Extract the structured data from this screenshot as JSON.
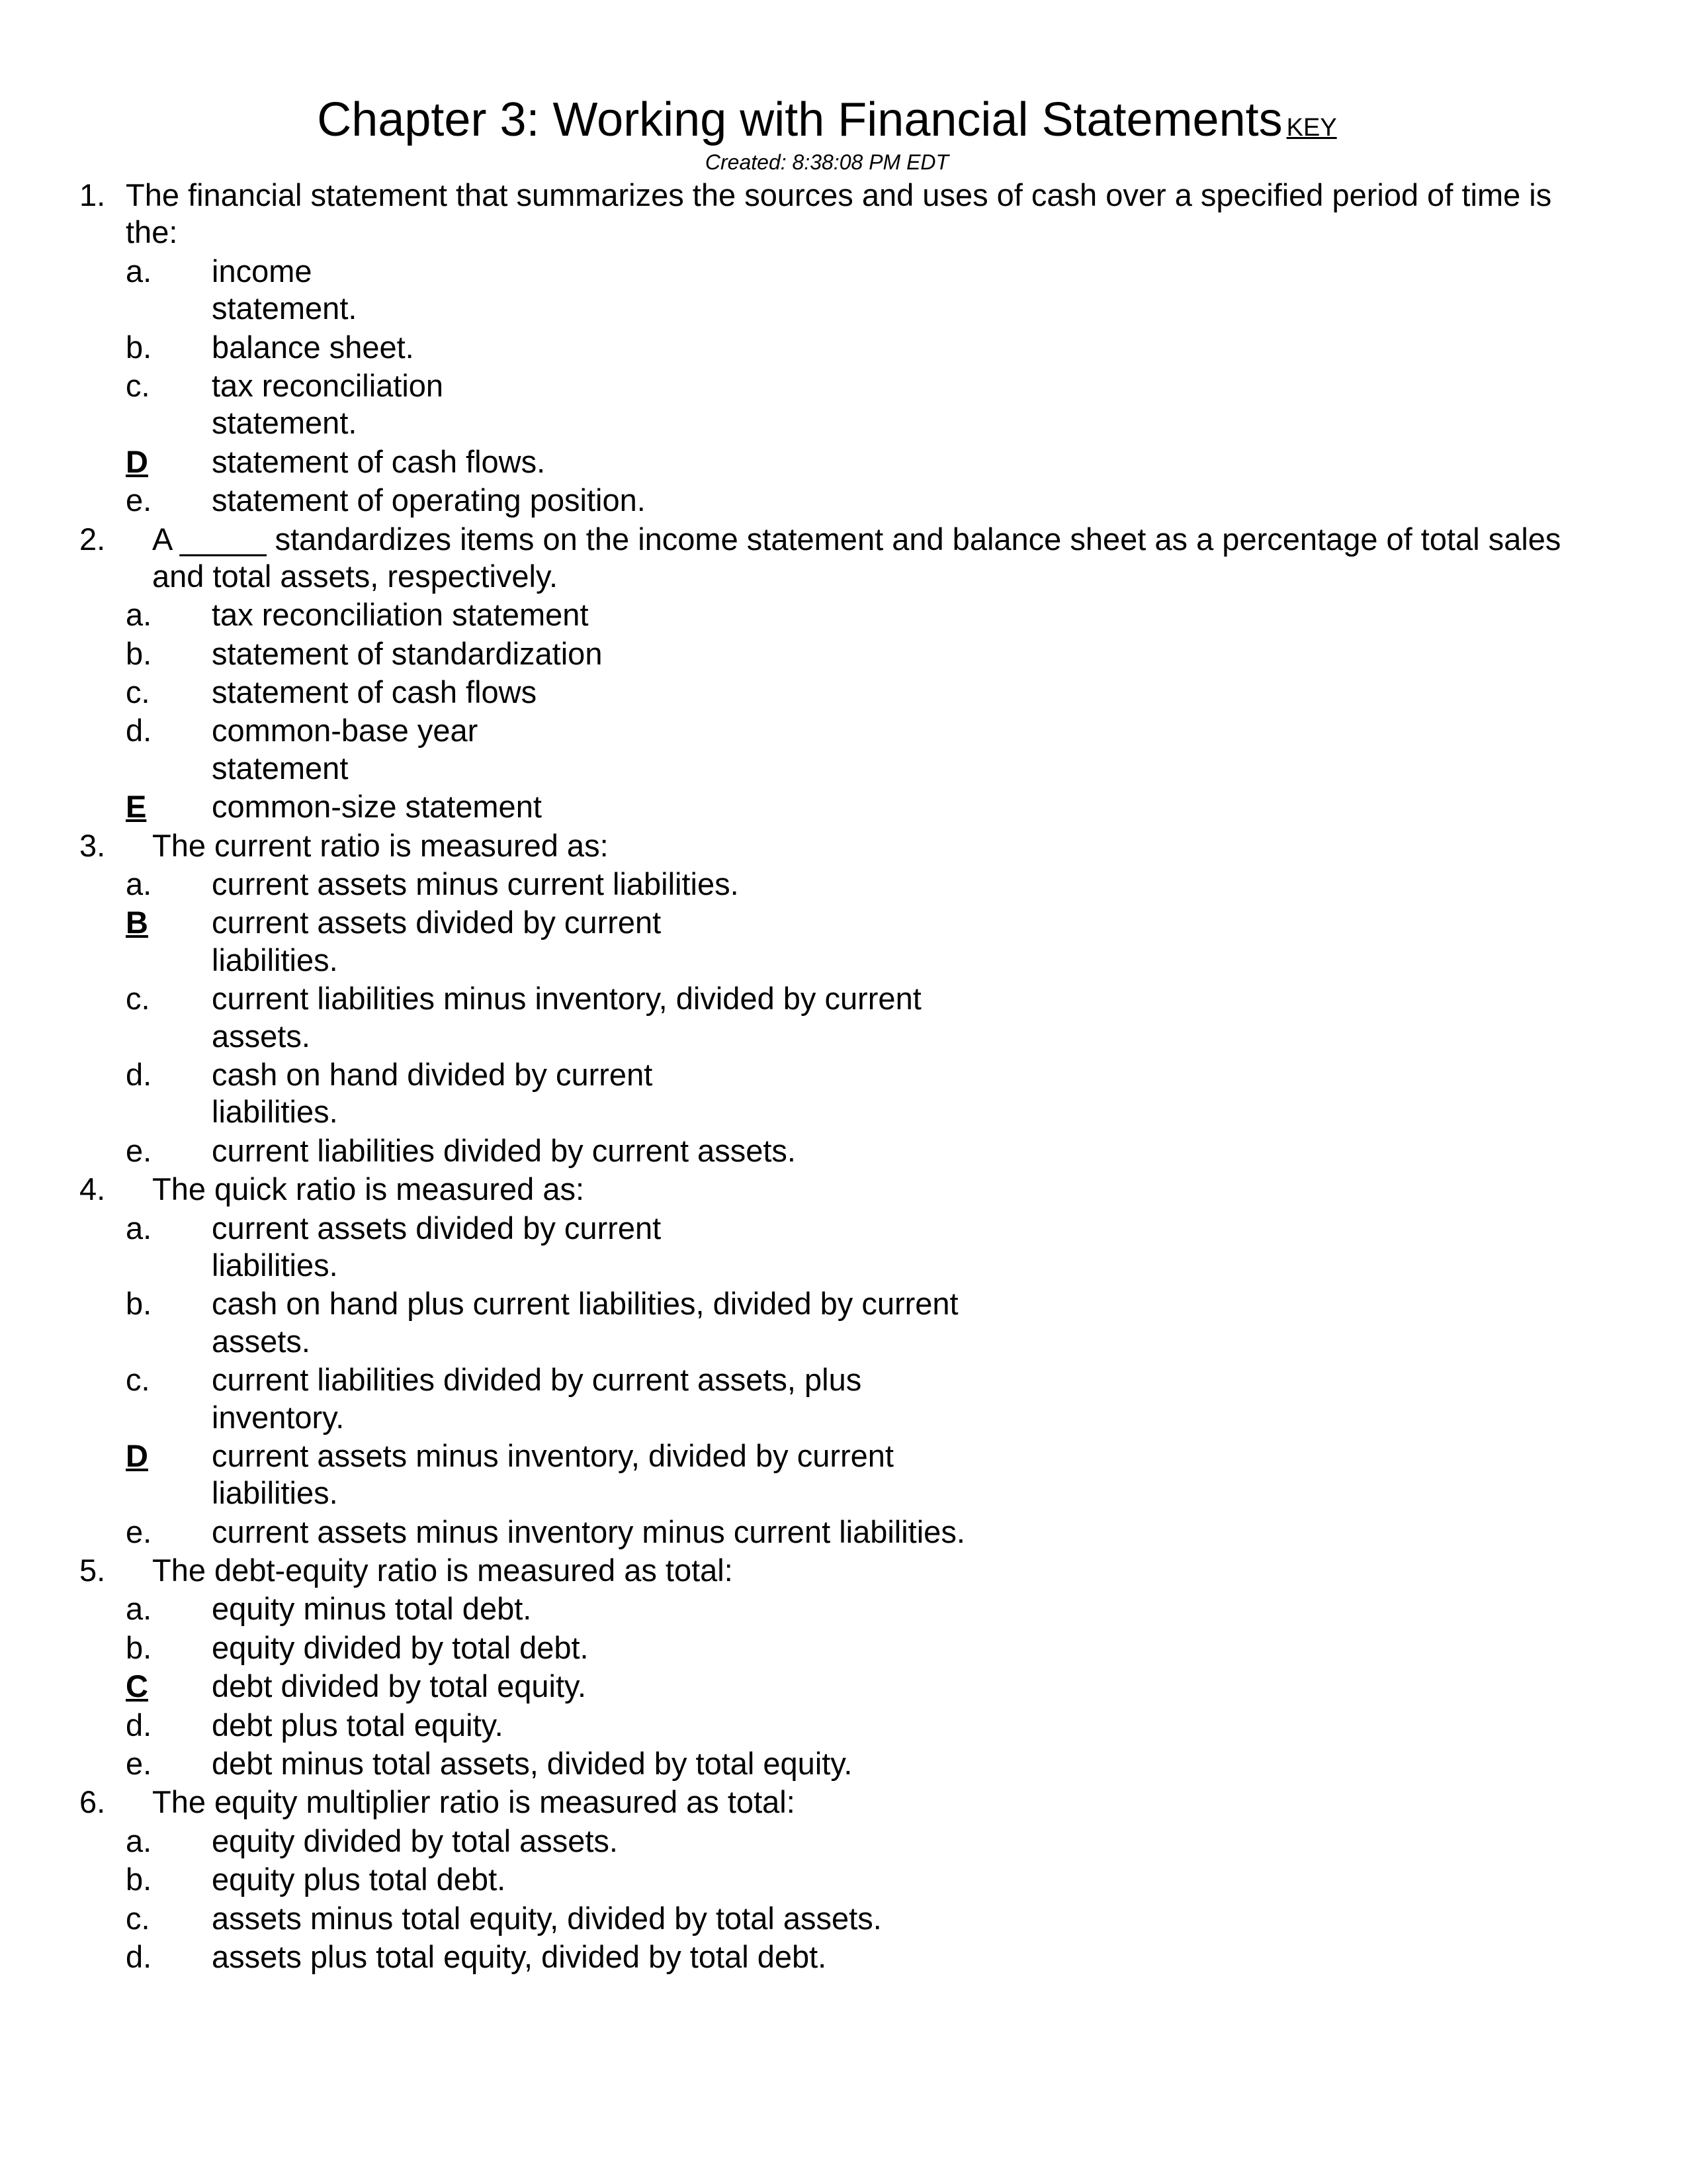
{
  "title": "Chapter 3: Working with Financial Statements",
  "key_label": "KEY",
  "created": "Created: 8:38:08 PM EDT",
  "questions": [
    {
      "num": "1.",
      "text": "The financial statement that summarizes the sources and uses of cash over a specified period of time is the:",
      "no_indent": true,
      "options": [
        {
          "letter": "a.",
          "text": "income statement.",
          "correct": false,
          "narrow": true
        },
        {
          "letter": "b.",
          "text": "balance sheet.",
          "correct": false
        },
        {
          "letter": "c.",
          "text": "tax reconciliation statement.",
          "correct": false,
          "narrow": true
        },
        {
          "letter": "D",
          "text": "statement of cash flows.",
          "correct": true
        },
        {
          "letter": "e.",
          "text": "statement of operating position.",
          "correct": false
        }
      ]
    },
    {
      "num": "2.",
      "text": "A _____ standardizes items on the income statement and balance sheet as a percentage of total sales and total assets, respectively.",
      "options": [
        {
          "letter": "a.",
          "text": "tax reconciliation statement",
          "correct": false
        },
        {
          "letter": "b.",
          "text": "statement of standardization",
          "correct": false
        },
        {
          "letter": "c.",
          "text": "statement of cash flows",
          "correct": false,
          "narrow": true
        },
        {
          "letter": "d.",
          "text": "common-base year statement",
          "correct": false,
          "narrow": true
        },
        {
          "letter": "E",
          "text": "common-size statement",
          "correct": true
        }
      ]
    },
    {
      "num": "3.",
      "text": "The current ratio is measured as:",
      "narrow_q": true,
      "options": [
        {
          "letter": "a.",
          "text": "current assets minus current liabilities.",
          "correct": false
        },
        {
          "letter": "B",
          "text": "current assets divided by current liabilities.",
          "correct": true,
          "narrow": true
        },
        {
          "letter": "c.",
          "text": "current liabilities minus inventory, divided by current assets.",
          "correct": false,
          "narrow": true
        },
        {
          "letter": "d.",
          "text": "cash on hand divided by current liabilities.",
          "correct": false,
          "narrow": true
        },
        {
          "letter": "e.",
          "text": "current liabilities divided by current assets.",
          "correct": false
        }
      ]
    },
    {
      "num": "4.",
      "text": "The quick ratio is measured as:",
      "options": [
        {
          "letter": "a.",
          "text": "current assets divided by current liabilities.",
          "correct": false,
          "narrow": true
        },
        {
          "letter": "b.",
          "text": "cash on hand plus current liabilities, divided by current assets.",
          "correct": false,
          "narrow": true
        },
        {
          "letter": "c.",
          "text": "current liabilities divided by current assets, plus inventory.",
          "correct": false,
          "narrow": true
        },
        {
          "letter": "D",
          "text": "current assets minus inventory, divided by current liabilities.",
          "correct": true,
          "narrow": true
        },
        {
          "letter": "e.",
          "text": "current assets minus inventory minus current liabilities.",
          "correct": false
        }
      ]
    },
    {
      "num": "5.",
      "text": "The debt-equity ratio is measured as total:",
      "options": [
        {
          "letter": "a.",
          "text": "equity minus total debt.",
          "correct": false
        },
        {
          "letter": "b.",
          "text": "equity divided by total debt.",
          "correct": false
        },
        {
          "letter": "C",
          "text": "debt divided by total equity.",
          "correct": true
        },
        {
          "letter": "d.",
          "text": "debt plus total equity.",
          "correct": false
        },
        {
          "letter": "e.",
          "text": "debt minus total assets, divided by total equity.",
          "correct": false
        }
      ]
    },
    {
      "num": "6.",
      "text": "The equity multiplier ratio is measured as total:",
      "options": [
        {
          "letter": "a.",
          "text": "equity divided by total assets.",
          "correct": false
        },
        {
          "letter": "b.",
          "text": "equity plus total debt.",
          "correct": false
        },
        {
          "letter": "c.",
          "text": "assets minus total equity, divided by total assets.",
          "correct": false
        },
        {
          "letter": "d.",
          "text": "assets plus total equity, divided by total debt.",
          "correct": false,
          "narrow": true
        }
      ]
    }
  ]
}
